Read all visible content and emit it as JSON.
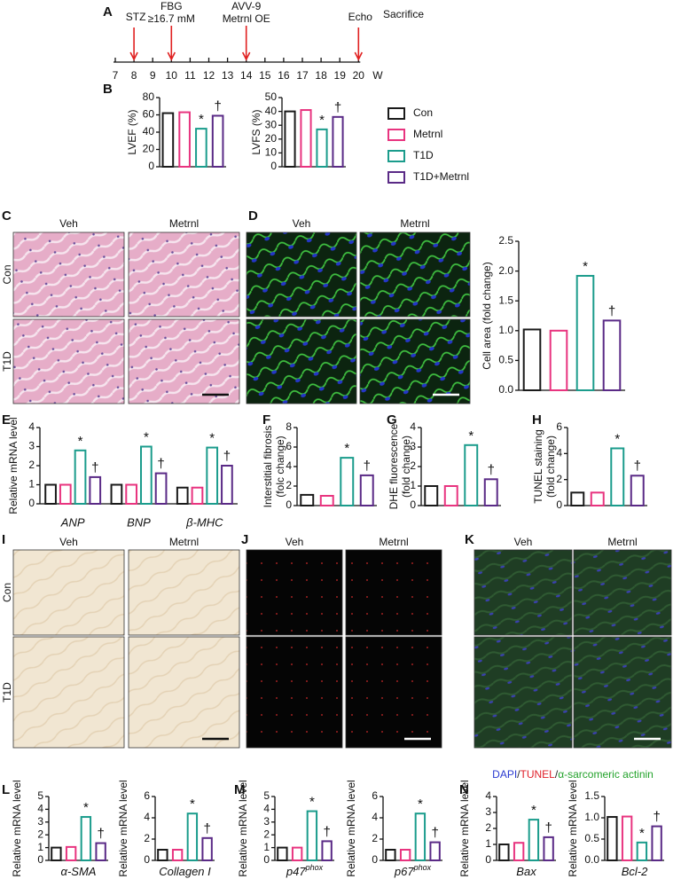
{
  "panels": [
    "A",
    "B",
    "C",
    "D",
    "E",
    "F",
    "G",
    "H",
    "I",
    "J",
    "K",
    "L",
    "M",
    "N"
  ],
  "timeline": {
    "weeks": [
      7,
      8,
      9,
      10,
      11,
      12,
      13,
      14,
      15,
      16,
      17,
      18,
      19,
      20
    ],
    "unit": "W",
    "events": [
      {
        "week": 8,
        "label": [
          "STZ"
        ]
      },
      {
        "week": 10,
        "label": [
          "FBG",
          "≥16.7 mM"
        ]
      },
      {
        "week": 14,
        "label": [
          "AVV-9",
          "Metrnl OE"
        ]
      },
      {
        "week": 20,
        "label": [
          "Echo"
        ]
      }
    ],
    "end_label": "Sacrifice"
  },
  "legend": [
    {
      "name": "Con",
      "color": "#1a1a1a"
    },
    {
      "name": "Metrnl",
      "color": "#e8347f"
    },
    {
      "name": "T1D",
      "color": "#1b9c8c",
      "marker": "*"
    },
    {
      "name": "T1D+Metrnl",
      "color": "#5a2a86",
      "marker": "†"
    }
  ],
  "images": [
    {
      "columns": [
        "Veh",
        "Metrnl"
      ],
      "rows": [
        "Con",
        "T1D"
      ]
    },
    {
      "columns": [
        "Veh",
        "Metrnl"
      ]
    },
    {
      "columns": [
        "Veh",
        "Metrnl"
      ],
      "rows": [
        "Con",
        "T1D"
      ]
    },
    {
      "columns": [
        "Veh",
        "Metrnl"
      ]
    },
    {
      "columns": [
        "Veh",
        "Metrnl"
      ],
      "caption": [
        {
          "text": "DAPI",
          "color": "#2a3ad0"
        },
        {
          "text": "/",
          "color": "#222222"
        },
        {
          "text": "TUNEL",
          "color": "#e0202a"
        },
        {
          "text": "/",
          "color": "#222222"
        },
        {
          "text": "α-sarcomeric actinin",
          "color": "#22a22a"
        }
      ]
    }
  ],
  "chart_data": [
    {
      "type": "bar",
      "ylabel": [
        "LVEF (%)"
      ],
      "ylim": [
        0,
        80
      ],
      "yticks": [
        0,
        20,
        40,
        60,
        80
      ],
      "values": [
        62,
        63,
        44,
        59
      ]
    },
    {
      "type": "bar",
      "ylabel": [
        "LVFS (%)"
      ],
      "ylim": [
        0,
        50
      ],
      "yticks": [
        0,
        10,
        20,
        30,
        40,
        50
      ],
      "values": [
        40,
        41,
        27,
        36
      ]
    },
    {
      "type": "bar",
      "ylabel": [
        "Cell area (fold change)"
      ],
      "ylim": [
        0,
        2.5
      ],
      "yticks": [
        {
          "value": 0,
          "label": "0.0"
        },
        0.5,
        {
          "value": 1,
          "label": "1.0"
        },
        1.5,
        {
          "value": 2,
          "label": "2.0"
        },
        2.5
      ],
      "values": [
        1.02,
        1.0,
        1.92,
        1.17
      ]
    },
    {
      "type": "grouped_bar",
      "ylabel": [
        "Relative mRNA level"
      ],
      "ylim": [
        0,
        4
      ],
      "yticks": [
        0,
        1,
        2,
        3,
        4
      ],
      "categories": [
        "ANP",
        "BNP",
        "β-MHC"
      ],
      "series": [
        {
          "values": [
            1.0,
            1.0,
            0.85
          ]
        },
        {
          "values": [
            1.0,
            1.0,
            0.85
          ]
        },
        {
          "values": [
            2.8,
            3.0,
            2.95
          ]
        },
        {
          "values": [
            1.4,
            1.6,
            2.0
          ]
        }
      ]
    },
    {
      "type": "bar",
      "ylabel": [
        "Interstitial fibrosis",
        "(folc change)"
      ],
      "ylim": [
        0,
        8
      ],
      "yticks": [
        0,
        2,
        4,
        6,
        8
      ],
      "values": [
        1.1,
        1.0,
        4.9,
        3.1
      ]
    },
    {
      "type": "bar",
      "ylabel": [
        "DHE fluorescence",
        "(fold change)"
      ],
      "ylim": [
        0,
        4
      ],
      "yticks": [
        0,
        1,
        2,
        3,
        4
      ],
      "values": [
        1.0,
        1.0,
        3.1,
        1.35
      ]
    },
    {
      "type": "bar",
      "ylabel": [
        "TUNEL staining",
        "(fold change)"
      ],
      "ylim": [
        0,
        6
      ],
      "yticks": [
        0,
        2,
        4,
        6
      ],
      "values": [
        1.0,
        1.0,
        4.4,
        2.3
      ]
    },
    {
      "type": "bar",
      "ylabel": [
        "Relative mRNA level"
      ],
      "xlabel": "α-SMA",
      "ylim": [
        0,
        5
      ],
      "yticks": [
        0,
        1,
        2,
        3,
        4,
        5
      ],
      "values": [
        1.0,
        1.05,
        3.4,
        1.35
      ]
    },
    {
      "type": "bar",
      "ylabel": [
        "Relative mRNA level"
      ],
      "xlabel": "Collagen I",
      "ylim": [
        0,
        6
      ],
      "yticks": [
        0,
        2,
        4,
        6
      ],
      "values": [
        1.0,
        1.0,
        4.4,
        2.1
      ]
    },
    {
      "type": "bar",
      "ylabel": [
        "Relative mRNA level"
      ],
      "xlabel": "p47",
      "xlabel_sup": "phox",
      "ylim": [
        0,
        5
      ],
      "yticks": [
        0,
        1,
        2,
        3,
        4,
        5
      ],
      "values": [
        1.0,
        1.0,
        3.85,
        1.5
      ]
    },
    {
      "type": "bar",
      "ylabel": [
        "Relative mRNA level"
      ],
      "xlabel": "p67",
      "xlabel_sup": "phox",
      "ylim": [
        0,
        6
      ],
      "yticks": [
        0,
        2,
        4,
        6
      ],
      "values": [
        1.0,
        1.0,
        4.4,
        1.7
      ]
    },
    {
      "type": "bar",
      "ylabel": [
        "Relative mRNA level"
      ],
      "xlabel": "Bax",
      "ylim": [
        0,
        4
      ],
      "yticks": [
        0,
        1,
        2,
        3,
        4
      ],
      "values": [
        1.0,
        1.1,
        2.55,
        1.45
      ]
    },
    {
      "type": "bar",
      "ylabel": [
        "Relative mRNA level"
      ],
      "xlabel": "Bcl-2",
      "ylim": [
        0,
        1.5
      ],
      "yticks": [
        {
          "value": 0,
          "label": "0.0"
        },
        0.5,
        {
          "value": 1,
          "label": "1.0"
        },
        1.5
      ],
      "values": [
        1.02,
        1.03,
        0.42,
        0.8
      ]
    }
  ]
}
